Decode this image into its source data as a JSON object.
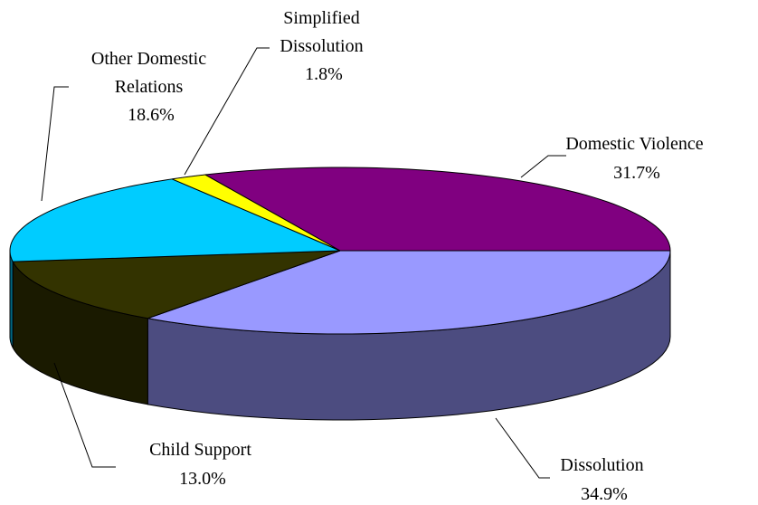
{
  "chart_data": {
    "type": "pie",
    "title": "",
    "style": "3d",
    "slices": [
      {
        "label": "Domestic Violence",
        "value": 31.7,
        "value_label": "31.7%",
        "color": "#800080",
        "side_color": "#400040"
      },
      {
        "label": "Dissolution",
        "value": 34.9,
        "value_label": "34.9%",
        "color": "#9999ff",
        "side_color": "#4c4c80"
      },
      {
        "label": "Child Support",
        "value": 13.0,
        "value_label": "13.0%",
        "color": "#333300",
        "side_color": "#1a1a00"
      },
      {
        "label": "Other Domestic Relations",
        "value": 18.6,
        "value_label": "18.6%",
        "color": "#00ccff",
        "side_color": "#006680"
      },
      {
        "label": "Simplified Dissolution",
        "value": 1.8,
        "value_label": "1.8%",
        "color": "#ffff00",
        "side_color": "#808000"
      }
    ]
  }
}
